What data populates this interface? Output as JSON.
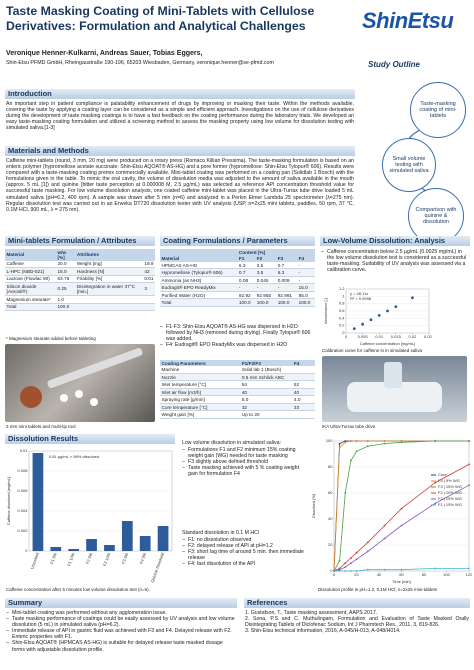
{
  "header": {
    "title": "Taste Masking Coating of Mini-Tablets with Cellulose Derivatives: Formulation and Analytical Challenges",
    "logo": "ShinEtsu",
    "authors": "Veronique Henner-Kulkarni, Andreas Sauer, Tobias Eggers,",
    "affiliation": "Shin-Etsu PFMD GmbH, Rheingaustraße 190-196, 65203 Wiesbaden, Germany, veronique.henner@se-pfmd.com"
  },
  "introduction": {
    "heading": "Introduction",
    "text": "An important step in patient compliance is palatability enhancement of drugs by improving or masking their taste. Within the methods available, covering the taste by applying a coating layer can be considered as a simple and efficient approach. Investigations on the use of cellulose derivatives during the development of taste masking coatings is to have a fast feedback on the coating performance during the laboratory trials. We developed an easy taste-masking coating formulation and utilized a screening method to assess the masking property using low volume for dissolution testing with simulated saliva.[1-3]"
  },
  "methods": {
    "heading": "Materials and Methods",
    "text": "Caffeine mini-tablets (round, 3 mm, 20 mg) were produced on a rotary press (Romaco Killian Pressima). The taste-masking formulation is based on an enteric polymer (hypromellose acetate succinate: Shin-Etsu AQOAT® AS-HG) and a pore former (hypromellose: Shin-Etsu Tylopur® 606). Results were compared with a taste-masking coating premix commercially available. Mini-tablet coating was performed on a coating pan (Solidlab 1 Bosch) with the formulations given in the table. To mimic the oral cavity, the volume of dissolution media was adjusted to the amount of saliva available in the mouth (approx. 5 mL [1]) and quinine (bitter taste perception at 0.000008 M, 2.5 µg/mL) was selected as reference API concentration threshold value for successful taste masking. For low volume dissolution analysis, one coated caffeine mini-tablet was placed in the Ultra-Turrax tube drive loaded 5 mL simulated saliva (pH=6.2, 400 rpm). A sample was drawn after 5 min (n=6) and analyzed in a Perkin Elmer Lambda 25 spectrometer (λ=275 nm). Regular dissolution test was carried out in an Erweka DT720 dissolution tester with UV analysis (USP, n=2x25 mini tablets, paddles, 50 rpm, 37 °C, 0.1M HCl, 900 mL, λ = 275 nm)."
  },
  "outline": {
    "heading": "Study Outline",
    "steps": [
      "Taste-masking coating of mini-tablets",
      "Small volume testing with simulated saliva",
      "Comparison with quinine & dissolution"
    ]
  },
  "minitablets": {
    "heading": "Mini-tablets Formulation / Attributes",
    "table": {
      "header": [
        "Material",
        "w/w [%]",
        "Attributes",
        null
      ],
      "rows": [
        [
          "Caffeine",
          "20.0",
          "Weight [mg]",
          "19.9"
        ],
        [
          "L-HPC (NBD-021)",
          "15.0",
          "Hardness [N]",
          "42"
        ],
        [
          "Lactose (Flowlac 90)",
          "63.75",
          "Friability [%]",
          "0.01"
        ],
        [
          "Silicon dioxide (Aerosil®)",
          "0.25",
          "Disintegration in water 37°C [min.]",
          "3"
        ],
        [
          "Magnesium stearate*",
          "1.0",
          null,
          null
        ],
        [
          "Total",
          "100.0",
          null,
          null
        ]
      ]
    },
    "footnote": "* Magnesium stearate added before tableting",
    "photo_caption": "3 mm mini tablets and multi-tip tool"
  },
  "coating": {
    "heading": "Coating Formulations / Parameters",
    "table": {
      "group": "Content [%]",
      "header": [
        "Material",
        "F1",
        "F2",
        "F3",
        "F4"
      ],
      "rows": [
        [
          "HPMCAS AS-HG",
          "6.3",
          "3.5",
          "0.7",
          "-"
        ],
        [
          "Hypromellose (Tylopur® 606)",
          "0.7",
          "3.5",
          "6.3",
          "-"
        ],
        [
          "Ammonia (as NH3)",
          "0.08",
          "0.045",
          "0.009",
          "-"
        ],
        [
          "Eudragit® EPO ReadyMix",
          "-",
          "-",
          "-",
          "15.0"
        ],
        [
          "Purified Water (H2O)",
          "92.92",
          "92.955",
          "92.991",
          "85.0"
        ],
        [
          "Total",
          "100.0",
          "100.0",
          "100.0",
          "100.0"
        ]
      ]
    },
    "notes": [
      "F1-F3: Shin-Etsu AQOAT® AS-HG was dispersed in H2O followed by NH3 (removed during drying). Finally Tylopur® 606 was added.",
      "F4: Eudragit® EPO ReadyMix was dispersed in H2O"
    ],
    "params": {
      "header": [
        "Coating Parameters",
        "F1/F2/F3",
        "F4"
      ],
      "rows": [
        [
          "Machine",
          "Solid lab 1 (Bosch)",
          null
        ],
        [
          "Nozzle",
          "0.5 mm Schlick ABC",
          null
        ],
        [
          "Inlet temperature [°C]",
          "54",
          "52"
        ],
        [
          "Inlet air flow [m3/h]",
          "40",
          "40"
        ],
        [
          "Spraying rate [g/min]",
          "5.0",
          "4.0"
        ],
        [
          "Core temperature [°C]",
          "32",
          "33"
        ],
        [
          "Weight gain [%]",
          "Up to 20",
          null
        ]
      ]
    }
  },
  "low_volume": {
    "heading": "Low-Volume Dissolution: Analysis",
    "bullets": [
      "Caffeine concentration below 2.5 µg/mL (0.0025 mg/mL) in the low volume dissolution test is considered as a successful taste-masking. Suitability of UV analysis was assessed via a calibration curve."
    ],
    "chart_caption": "Calibration curve for caffeine in in simulated saliva",
    "photo_caption": "IKA Ultra-Turrax  tube drive"
  },
  "results": {
    "heading": "Dissolution Results",
    "bar_caption": "Caffeine concentration after 5 minutes low volume dissolution test (n=6).",
    "intro": "Low volume dissolution in simulated saliva:",
    "saliva_bullets": [
      "Formulations F1 and F2 minimum 15% coating weight gain (WG) needed for taste masking",
      "F3 slightly above defined threshold",
      "Taste masking achieved with 5 % coating weight gain for formulation F4"
    ],
    "hcl_heading": "Standard dissolution in 0.1 M HCl",
    "hcl_bullets": [
      "F1: no dissolution observed",
      "F2: delayed release of API at pH=1.2",
      "F3: short lag time of around 5 min. then immediate release",
      "F4: fast dissolution of the API"
    ],
    "line_caption": "Dissolution profile in pH=1.2, 0.1M HCl, n=2x25 mini-tablets"
  },
  "summary": {
    "heading": "Summary",
    "bullets": [
      "Mini-tablet coating was performed without any agglomeration issue.",
      "Taste masking performance of coatings could be easily assessed by UV analysis and low volume dissolution (5 mL) in simulated saliva (pH=6.2).",
      "Immediate release of API in gastric fluid was achieved with F3 and F4. Delayed release with F2. Enteric properties with F1.",
      "Shin-Etsu AQOAT® (HPMCAS AS-HG) is suitable for delayed release taste masked dosage forms with adjustable dissolution profile."
    ]
  },
  "references": {
    "heading": "References",
    "items": [
      "1. Gustafson, T., Taste masking assessment, AAPS 2017.",
      "2. Sona, P.S and C. Muthulingam, Formulation and Evaluation of Taste Masked Orally Disintegrating Tablets of Diclofenac Sodium, Int J Pharmtech Res., 2011, 3, 819-826.",
      "3. Shin-Etsu technical information, 2016, A-045/H-013, A-048/H014."
    ]
  },
  "chart_data": [
    {
      "type": "scatter",
      "xlabel": "Caffeine concentration [mg/mL]",
      "ylabel": "Absorbance [-]",
      "equation": "y = 48.11x",
      "r2": "R² = 0.9998",
      "color": "#2e5c9a",
      "x": [
        0.0025,
        0.005,
        0.0075,
        0.01,
        0.0125,
        0.015,
        0.02
      ],
      "values": [
        0.12,
        0.24,
        0.36,
        0.48,
        0.6,
        0.72,
        0.96
      ],
      "xlim": [
        0,
        0.025
      ],
      "xticks": [
        0,
        0.005,
        0.01,
        0.015,
        0.02,
        0.025
      ],
      "ylim": [
        0,
        1.2
      ],
      "yticks": [
        0,
        0.2,
        0.4,
        0.6,
        0.8,
        1,
        1.2
      ]
    },
    {
      "type": "bar",
      "ylabel": "Caffeine dissolved [mg/mL]",
      "annotation": "0.81 µg/mL ≈ 98% dissolved",
      "color": "#2e5c9a",
      "categories": [
        "Uncoated",
        "F1 5%",
        "F1 10%",
        "F2 5%",
        "F2 10%",
        "F3 5%",
        "F4 5%",
        "Quinine threshold"
      ],
      "values": [
        0.0098,
        0.0004,
        0.0002,
        0.0012,
        0.0006,
        0.003,
        0.0015,
        0.0025
      ],
      "ylim": [
        0,
        0.01
      ],
      "yticks": [
        0,
        0.002,
        0.004,
        0.006,
        0.008,
        0.01
      ]
    },
    {
      "type": "line",
      "xlabel": "Time [min]",
      "ylabel": "Dissolved [%]",
      "x": [
        0,
        5,
        10,
        15,
        20,
        30,
        45,
        60,
        90,
        120
      ],
      "xlim": [
        0,
        120
      ],
      "xticks": [
        0,
        20,
        40,
        60,
        80,
        100,
        120
      ],
      "ylim": [
        0,
        100
      ],
      "yticks": [
        0,
        20,
        40,
        60,
        80,
        100
      ],
      "series": [
        {
          "name": "Core",
          "color": "#1f3f8f",
          "values": [
            0,
            98,
            100,
            100,
            100,
            100,
            100,
            100,
            100,
            100
          ]
        },
        {
          "name": "F4 | 5% WG",
          "color": "#e8892a",
          "values": [
            0,
            95,
            99,
            100,
            100,
            100,
            100,
            100,
            100,
            100
          ]
        },
        {
          "name": "F3 | 15% WG",
          "color": "#4aa04a",
          "values": [
            0,
            8,
            60,
            85,
            92,
            96,
            98,
            99,
            100,
            100
          ]
        },
        {
          "name": "F2 | 10% WG",
          "color": "#d23c3c",
          "values": [
            0,
            2,
            6,
            10,
            14,
            22,
            35,
            48,
            68,
            82
          ]
        },
        {
          "name": "F2 | 15% WG",
          "color": "#8a5cb8",
          "values": [
            0,
            1,
            3,
            6,
            9,
            15,
            25,
            35,
            52,
            66
          ]
        },
        {
          "name": "F1 | 15% WG",
          "color": "#3bb7d6",
          "values": [
            0,
            0,
            0,
            0,
            0,
            1,
            1,
            1,
            2,
            2
          ]
        }
      ]
    }
  ]
}
